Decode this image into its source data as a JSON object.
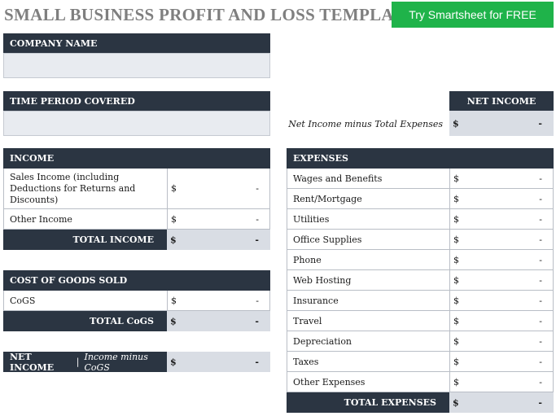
{
  "title": "SMALL BUSINESS PROFIT AND LOSS TEMPLATE",
  "cta_label": "Try Smartsheet for FREE",
  "company": {
    "header": "COMPANY NAME",
    "value": ""
  },
  "period": {
    "header": "TIME PERIOD COVERED",
    "value": ""
  },
  "net_income_summary": {
    "header": "NET INCOME",
    "note": "Net Income minus Total Expenses",
    "currency": "$",
    "value": "-"
  },
  "income": {
    "header": "INCOME",
    "rows": [
      {
        "label": "Sales Income (including Deductions for Returns and Discounts)",
        "currency": "$",
        "value": "-"
      },
      {
        "label": "Other Income",
        "currency": "$",
        "value": "-"
      }
    ],
    "total_label": "TOTAL INCOME",
    "total_currency": "$",
    "total_value": "-"
  },
  "cogs": {
    "header": "COST OF GOODS SOLD",
    "rows": [
      {
        "label": "CoGS",
        "currency": "$",
        "value": "-"
      }
    ],
    "total_label": "TOTAL CoGS",
    "total_currency": "$",
    "total_value": "-"
  },
  "net_income_cogs": {
    "label": "NET INCOME",
    "separator": "|",
    "sublabel": "Income minus CoGS",
    "currency": "$",
    "value": "-"
  },
  "expenses": {
    "header": "EXPENSES",
    "rows": [
      {
        "label": "Wages and Benefits",
        "currency": "$",
        "value": "-"
      },
      {
        "label": "Rent/Mortgage",
        "currency": "$",
        "value": "-"
      },
      {
        "label": "Utilities",
        "currency": "$",
        "value": "-"
      },
      {
        "label": "Office Supplies",
        "currency": "$",
        "value": "-"
      },
      {
        "label": "Phone",
        "currency": "$",
        "value": "-"
      },
      {
        "label": "Web Hosting",
        "currency": "$",
        "value": "-"
      },
      {
        "label": "Insurance",
        "currency": "$",
        "value": "-"
      },
      {
        "label": "Travel",
        "currency": "$",
        "value": "-"
      },
      {
        "label": "Depreciation",
        "currency": "$",
        "value": "-"
      },
      {
        "label": "Taxes",
        "currency": "$",
        "value": "-"
      },
      {
        "label": "Other Expenses",
        "currency": "$",
        "value": "-"
      }
    ],
    "total_label": "TOTAL EXPENSES",
    "total_currency": "$",
    "total_value": "-"
  }
}
